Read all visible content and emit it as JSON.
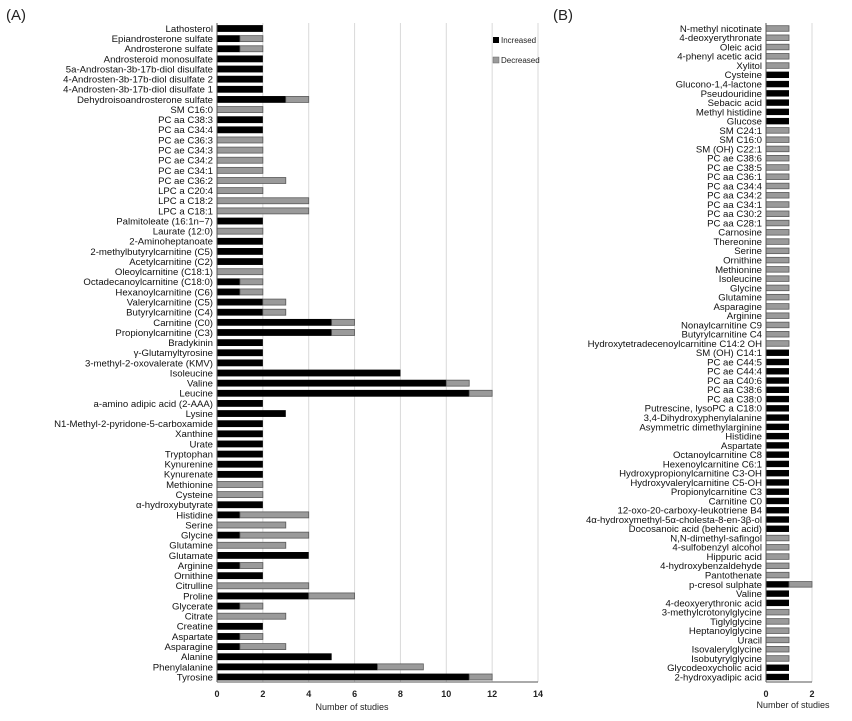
{
  "chart_data": [
    {
      "type": "bar",
      "orientation": "horizontal",
      "stacked": true,
      "panel_label": "(A)",
      "xlabel": "Number of studies",
      "xlim": [
        0,
        14
      ],
      "xticks": [
        "0",
        "2",
        "4",
        "6",
        "8",
        "10",
        "12",
        "14"
      ],
      "grid": true,
      "legend": {
        "position": "top-right",
        "entries": [
          "Increased",
          "Decreased"
        ]
      },
      "colors": {
        "Increased": "#000000",
        "Decreased": "#9a9a9a"
      },
      "categories": [
        "Lathosterol",
        "Epiandrosterone sulfate",
        "Androsterone sulfate",
        "Androsteroid monosulfate",
        "5a-Androstan-3b-17b-diol disulfate",
        "4-Androsten-3b-17b-diol disulfate 2",
        "4-Androsten-3b-17b-diol disulfate 1",
        "Dehydroisoandrosterone sulfate",
        "SM C16:0",
        "PC aa C38:3",
        "PC aa C34:4",
        "PC ae C36:3",
        "PC ae C34:3",
        "PC ae C34:2",
        "PC ae C34:1",
        "PC ae C36:2",
        "LPC a C20:4",
        "LPC a C18:2",
        "LPC a C18:1",
        "Palmitoleate (16:1n−7)",
        "Laurate (12:0)",
        "2-Aminoheptanoate",
        "2-methylbutyrylcarnitine (C5)",
        "Acetylcarnitine (C2)",
        "Oleoylcarnitine (C18:1)",
        "Octadecanoylcarnitine (C18:0)",
        "Hexanoylcarnitine (C6)",
        "Valerylcarnitine (C5)",
        "Butyrylcarnitine (C4)",
        "Carnitine (C0)",
        "Propionylcarnitine (C3)",
        "Bradykinin",
        "γ-Glutamyltyrosine",
        "3-methyl-2-oxovalerate (KMV)",
        "Isoleucine",
        "Valine",
        "Leucine",
        "a-amino adipic acid (2-AAA)",
        "Lysine",
        "N1-Methyl-2-pyridone-5-carboxamide",
        "Xanthine",
        "Urate",
        "Tryptophan",
        "Kynurenine",
        "Kynurenate",
        "Methionine",
        "Cysteine",
        "α-hydroxybutyrate",
        "Histidine",
        "Serine",
        "Glycine",
        "Glutamine",
        "Glutamate",
        "Arginine",
        "Ornithine",
        "Citrulline",
        "Proline",
        "Glycerate",
        "Citrate",
        "Creatine",
        "Aspartate",
        "Asparagine",
        "Alanine",
        "Phenylalanine",
        "Tyrosine"
      ],
      "series": [
        {
          "name": "Increased",
          "values": [
            2,
            1,
            1,
            2,
            2,
            2,
            2,
            3,
            0,
            2,
            2,
            0,
            0,
            0,
            0,
            0,
            0,
            0,
            0,
            2,
            0,
            2,
            2,
            2,
            0,
            1,
            1,
            2,
            2,
            5,
            5,
            2,
            2,
            2,
            8,
            10,
            11,
            2,
            3,
            2,
            2,
            2,
            2,
            2,
            2,
            0,
            0,
            2,
            1,
            0,
            1,
            0,
            4,
            1,
            2,
            0,
            4,
            1,
            0,
            2,
            1,
            1,
            5,
            7,
            11
          ]
        },
        {
          "name": "Decreased",
          "values": [
            0,
            1,
            1,
            0,
            0,
            0,
            0,
            1,
            2,
            0,
            0,
            2,
            2,
            2,
            2,
            3,
            2,
            4,
            4,
            0,
            2,
            0,
            0,
            0,
            2,
            1,
            1,
            1,
            1,
            1,
            1,
            0,
            0,
            0,
            0,
            1,
            1,
            0,
            0,
            0,
            0,
            0,
            0,
            0,
            0,
            2,
            2,
            0,
            3,
            3,
            3,
            3,
            0,
            1,
            0,
            4,
            2,
            1,
            3,
            0,
            1,
            2,
            0,
            2,
            1
          ]
        }
      ]
    },
    {
      "type": "bar",
      "orientation": "horizontal",
      "stacked": true,
      "panel_label": "(B)",
      "xlabel": "Number of studies",
      "xlim": [
        0,
        2
      ],
      "xticks": [
        "0",
        "2"
      ],
      "grid": true,
      "colors": {
        "Increased": "#000000",
        "Decreased": "#9a9a9a"
      },
      "categories": [
        "N-methyl nicotinate",
        "4-deoxyerythronate",
        "Oleic acid",
        "4-phenyl acetic acid",
        "Xylitol",
        "Cysteine",
        "Glucono-1,4-lactone",
        "Pseudouridine",
        "Sebacic acid",
        "Methyl histidine",
        "Glucose",
        "SM C24:1",
        "SM C16:0",
        "SM (OH) C22:1",
        "PC ae C38:6",
        "PC ae C38:5",
        "PC aa C36:1",
        "PC aa C34:4",
        "PC aa C34:2",
        "PC aa C34:1",
        "PC aa C30:2",
        "PC aa C28:1",
        "Carnosine",
        "Thereonine",
        "Serine",
        "Ornithine",
        "Methionine",
        "Isoleucine",
        "Glycine",
        "Glutamine",
        "Asparagine",
        "Arginine",
        "Nonaylcarnitine C9",
        "Butyrylcarnitine C4",
        "Hydroxytetradecenoylcarnitine C14:2 OH",
        "SM (OH) C14:1",
        "PC ae C44:5",
        "PC ae C44:4",
        "PC aa C40:6",
        "PC aa C38:6",
        "PC aa C38:0",
        "Putrescine, lysoPC a C18:0",
        "3,4-Dihydroxyphenylalanine",
        "Asymmetric dimethylarginine",
        "Histidine",
        "Aspartate",
        "Octanoylcarnitine C8",
        "Hexenoylcarnitine C6:1",
        "Hydroxypropionylcarnitine C3-OH",
        "Hydroxyvalerylcarnitine C5-OH",
        "Propionylcarnitine C3",
        "Carnitine C0",
        "12-oxo-20-carboxy-leukotriene B4",
        "4α-hydroxymethyl-5α-cholesta-8-en-3β-ol",
        "Docosanoic acid (behenic acid)",
        "N,N-dimethyl-safingol",
        "4-sulfobenzyl alcohol",
        "Hippuric acid",
        "4-hydroxybenzaldehyde",
        "Pantothenate",
        "p-cresol sulphate",
        "Valine",
        "4-deoxyerythronic acid",
        "3-methylcrotonylglycine",
        "Tiglylglycine",
        "Heptanoylglycine",
        "Uracil",
        "Isovalerylglycine",
        "Isobutyrylglycine",
        "Glycodeoxycholic acid",
        "2-hydroxyadipic acid"
      ],
      "series": [
        {
          "name": "Increased",
          "values": [
            0,
            0,
            0,
            0,
            0,
            1,
            1,
            1,
            1,
            1,
            1,
            0,
            0,
            0,
            0,
            0,
            0,
            0,
            0,
            0,
            0,
            0,
            0,
            0,
            0,
            0,
            0,
            0,
            0,
            0,
            0,
            0,
            0,
            0,
            0,
            1,
            1,
            1,
            1,
            1,
            1,
            1,
            1,
            1,
            1,
            1,
            1,
            1,
            1,
            1,
            1,
            1,
            1,
            1,
            1,
            0,
            0,
            0,
            0,
            0,
            1,
            1,
            1,
            0,
            0,
            0,
            0,
            0,
            0,
            1,
            1
          ]
        },
        {
          "name": "Decreased",
          "values": [
            1,
            1,
            1,
            1,
            1,
            0,
            0,
            0,
            0,
            0,
            0,
            1,
            1,
            1,
            1,
            1,
            1,
            1,
            1,
            1,
            1,
            1,
            1,
            1,
            1,
            1,
            1,
            1,
            1,
            1,
            1,
            1,
            1,
            1,
            1,
            0,
            0,
            0,
            0,
            0,
            0,
            0,
            0,
            0,
            0,
            0,
            0,
            0,
            0,
            0,
            0,
            0,
            0,
            0,
            0,
            1,
            1,
            1,
            1,
            1,
            1,
            0,
            0,
            1,
            1,
            1,
            1,
            1,
            1,
            0,
            0
          ]
        }
      ]
    }
  ]
}
